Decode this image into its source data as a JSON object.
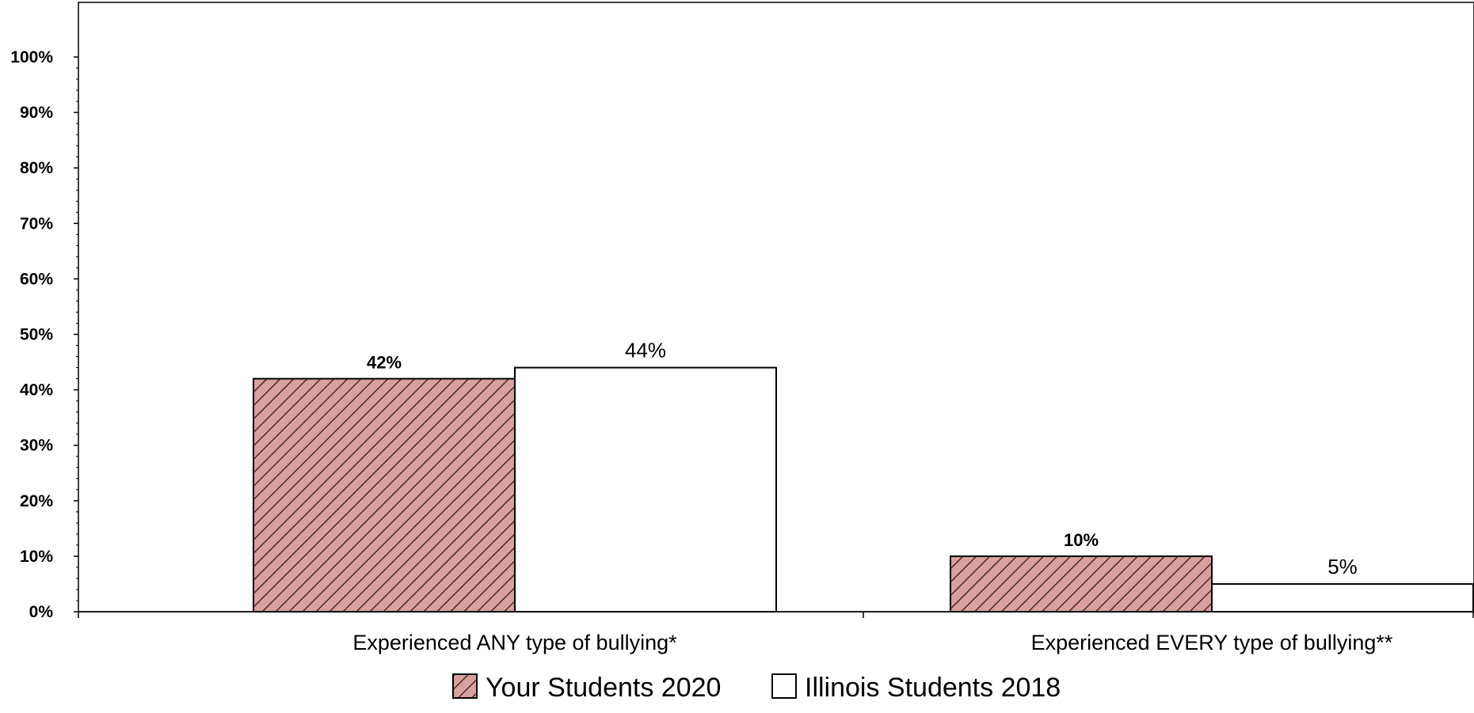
{
  "chart_data": {
    "type": "bar",
    "categories": [
      "Experienced ANY type of bullying*",
      "Experienced EVERY type of bullying**"
    ],
    "series": [
      {
        "name": "Your Students 2020",
        "values": [
          42,
          10
        ],
        "value_labels": [
          "42%",
          "10%"
        ],
        "color": "#d9a0a0",
        "hatch_color": "#4a2a2a"
      },
      {
        "name": "Illinois Students 2018",
        "values": [
          44,
          5
        ],
        "value_labels": [
          "44%",
          "5%"
        ],
        "color": "#ffffff"
      }
    ],
    "ylim": [
      0,
      100
    ],
    "yticks": [
      0,
      10,
      20,
      30,
      40,
      50,
      60,
      70,
      80,
      90,
      100
    ],
    "ytick_labels": [
      "0%",
      "10%",
      "20%",
      "30%",
      "40%",
      "50%",
      "60%",
      "70%",
      "80%",
      "90%",
      "100%"
    ],
    "title": "",
    "xlabel": "",
    "ylabel": "",
    "grid": false,
    "legend_position": "bottom-center"
  }
}
